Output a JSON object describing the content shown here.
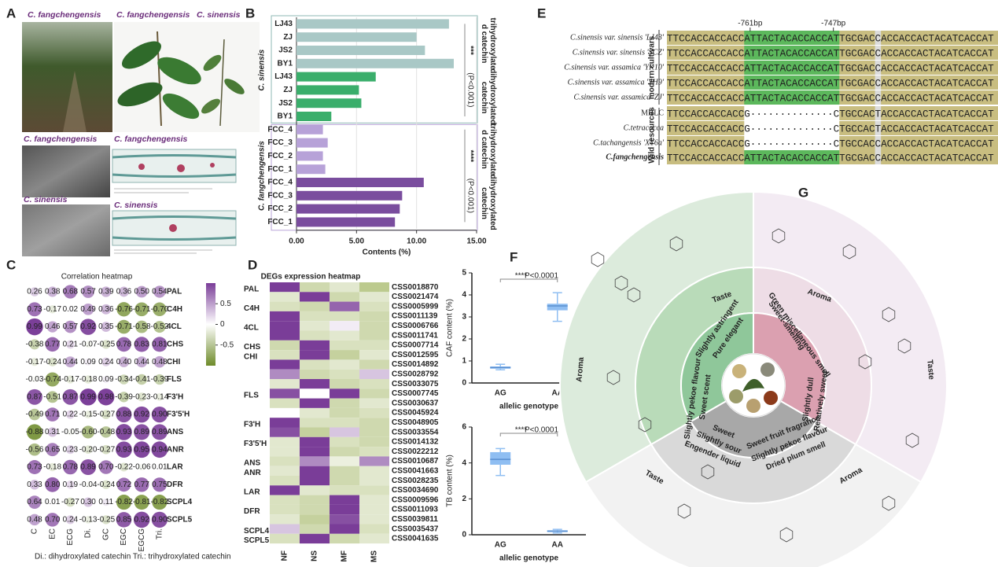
{
  "panel_labels": [
    "A",
    "B",
    "C",
    "D",
    "E",
    "F",
    "G"
  ],
  "panel_a": {
    "captions": [
      "C. fangchengensis",
      "C. fangchengensis",
      "C. sinensis",
      "C. fangchengensis",
      "C. fangchengensis",
      "C. sinensis",
      "C. sinensis"
    ]
  },
  "chart_data": [
    {
      "type": "bar",
      "orientation": "horizontal",
      "series": [
        {
          "name": "trihydroxylated catechin",
          "color": "#a9c8c6",
          "categories": [
            "LJ43",
            "ZJ",
            "JS2",
            "BY1"
          ],
          "values": [
            12.7,
            10.0,
            10.7,
            13.1
          ]
        },
        {
          "name": "dihydroxylated catechin",
          "color": "#3aae6b",
          "categories": [
            "LJ43",
            "ZJ",
            "JS2",
            "BY1"
          ],
          "values": [
            6.6,
            5.2,
            5.4,
            2.9
          ]
        },
        {
          "name": "trihydroxylated catechin",
          "color": "#b7a2d8",
          "categories": [
            "FCC_4",
            "FCC_3",
            "FCC_2",
            "FCC_1"
          ],
          "values": [
            2.2,
            2.6,
            2.2,
            2.4
          ]
        },
        {
          "name": "dihydroxylated catechin",
          "color": "#7a4d9e",
          "categories": [
            "FCC_4",
            "FCC_3",
            "FCC_2",
            "FCC_1"
          ],
          "values": [
            10.6,
            8.8,
            8.6,
            8.2
          ]
        }
      ],
      "species": [
        "C. sinensis",
        "C. fangchengensis"
      ],
      "significance": [
        {
          "stars": "***",
          "p": "(P<0.001)"
        },
        {
          "stars": "****",
          "p": "(P<0.001)"
        }
      ],
      "xlabel": "Contents (%)",
      "xlim": [
        0,
        15
      ],
      "xticks": [
        {
          "value": 0,
          "label": "0.00"
        },
        {
          "value": 5,
          "label": "5.00"
        },
        {
          "value": 10,
          "label": "10.00"
        },
        {
          "value": 15,
          "label": "15.00"
        }
      ],
      "grid": true
    },
    {
      "type": "heatmap",
      "title": "Correlation heatmap",
      "rows": [
        "PAL",
        "C4H",
        "4CL",
        "CHS",
        "CHI",
        "FLS",
        "F3'H",
        "F3'5'H",
        "ANS",
        "ANR",
        "LAR",
        "DFR",
        "SCPL4",
        "SCPL5"
      ],
      "columns": [
        "C",
        "EC",
        "ECG",
        "Di.",
        "GC",
        "EGC",
        "EGCG",
        "Tri."
      ],
      "values": [
        [
          0.26,
          0.38,
          0.68,
          0.57,
          0.39,
          0.36,
          0.5,
          0.54
        ],
        [
          0.73,
          -0.17,
          0.02,
          0.49,
          0.36,
          -0.76,
          -0.71,
          -0.7
        ],
        [
          0.99,
          0.46,
          0.57,
          0.92,
          0.35,
          -0.71,
          -0.58,
          -0.52
        ],
        [
          -0.38,
          0.77,
          0.21,
          -0.07,
          -0.25,
          0.78,
          0.83,
          0.81
        ],
        [
          -0.17,
          -0.24,
          0.44,
          0.09,
          0.24,
          0.4,
          0.44,
          0.48
        ],
        [
          -0.03,
          -0.74,
          -0.17,
          -0.18,
          0.09,
          -0.34,
          -0.41,
          -0.39
        ],
        [
          0.87,
          -0.51,
          0.87,
          0.99,
          0.98,
          -0.39,
          -0.23,
          -0.14
        ],
        [
          -0.49,
          0.71,
          0.22,
          -0.15,
          -0.27,
          0.88,
          0.92,
          0.9
        ],
        [
          -0.88,
          0.31,
          -0.05,
          -0.6,
          -0.48,
          0.93,
          0.89,
          0.89
        ],
        [
          -0.56,
          0.65,
          0.23,
          -0.2,
          -0.27,
          0.93,
          0.95,
          0.94
        ],
        [
          0.73,
          -0.18,
          0.78,
          0.89,
          0.7,
          -0.22,
          -0.06,
          0.01
        ],
        [
          0.33,
          0.8,
          0.19,
          -0.04,
          -0.24,
          0.72,
          0.77,
          0.75
        ],
        [
          0.64,
          0.01,
          -0.27,
          0.3,
          0.11,
          -0.82,
          -0.81,
          -0.82
        ],
        [
          0.48,
          0.7,
          0.24,
          -0.13,
          -0.25,
          0.85,
          0.92,
          0.9
        ]
      ],
      "value_labels": [
        [
          "0.26",
          "0.38",
          "0.68",
          "0.57",
          "0.39",
          "0.36",
          "0.50",
          "0.54"
        ],
        [
          "0.73",
          "-0.17",
          "0.02",
          "0.49",
          "0.36",
          "-0.76",
          "-0.71",
          "-0.70"
        ],
        [
          "0.99",
          "0.46",
          "0.57",
          "0.92",
          "0.35",
          "-0.71",
          "-0.58",
          "-0.52"
        ],
        [
          "-0.38",
          "0.77",
          "0.21",
          "-0.07",
          "-0.25",
          "0.78",
          "0.83",
          "0.81"
        ],
        [
          "-0.17",
          "-0.24",
          "0.44",
          "0.09",
          "0.24",
          "0.40",
          "0.44",
          "0.48"
        ],
        [
          "-0.03",
          "-0.74",
          "-0.17",
          "-0.18",
          "0.09",
          "-0.34",
          "-0.41",
          "-0.39"
        ],
        [
          "0.87",
          "-0.51",
          "0.87",
          "0.99",
          "0.98",
          "-0.39",
          "-0.23",
          "-0.14"
        ],
        [
          "-0.49",
          "0.71",
          "0.22",
          "-0.15",
          "-0.27",
          "0.88",
          "0.92",
          "0.90"
        ],
        [
          "-0.88",
          "0.31",
          "-0.05",
          "-0.60",
          "-0.48",
          "0.93",
          "0.89",
          "0.89"
        ],
        [
          "-0.56",
          "0.65",
          "0.23",
          "-0.20",
          "-0.27",
          "0.93",
          "0.95",
          "0.94"
        ],
        [
          "0.73",
          "-0.18",
          "0.78",
          "0.89",
          "0.70",
          "-0.22",
          "-0.06",
          "0.01"
        ],
        [
          "0.33",
          "0.80",
          "0.19",
          "-0.04",
          "-0.24",
          "0.72",
          "0.77",
          "0.75"
        ],
        [
          "0.64",
          "0.01",
          "-0.27",
          "0.30",
          "0.11",
          "-0.82",
          "-0.81",
          "-0.82"
        ],
        [
          "0.48",
          "0.70",
          "0.24",
          "-0.13",
          "-0.25",
          "0.85",
          "0.92",
          "0.90"
        ]
      ],
      "clim": [
        -1,
        1
      ],
      "cticks": [
        0.5,
        0,
        -0.5
      ],
      "colors": {
        "positive": "#7a3d98",
        "negative": "#6e8b2a"
      },
      "footnote": "Di.: dihydroxylated catechin   Tri.: trihydroxylated catechin"
    },
    {
      "type": "heatmap",
      "title": "DEGs expression heatmap",
      "row_groups": [
        "PAL",
        "C4H",
        "4CL",
        "CHS",
        "CHI",
        "FLS",
        "F3'H",
        "F3'5'H",
        "ANS",
        "ANR",
        "LAR",
        "DFR",
        "SCPL4",
        "SCPL5"
      ],
      "rows": [
        "CSS0018870",
        "CSS0021474",
        "CSS0005999",
        "CSS0011139",
        "CSS0006766",
        "CSS0011741",
        "CSS0007714",
        "CSS0012595",
        "CSS0014892",
        "CSS0028792",
        "CSS0033075",
        "CSS0007745",
        "CSS0030637",
        "CSS0045924",
        "CSS0048905",
        "CSS0033554",
        "CSS0014132",
        "CSS0022212",
        "CSS0010687",
        "CSS0041663",
        "CSS0028235",
        "CSS0034690",
        "CSS0009596",
        "CSS0011093",
        "CSS0039811",
        "CSS0035437",
        "CSS0041635"
      ],
      "columns": [
        "NF",
        "NS",
        "MF",
        "MS"
      ],
      "values": [
        [
          1,
          -0.5,
          -0.3,
          -0.7
        ],
        [
          -0.3,
          1,
          -0.5,
          -0.3
        ],
        [
          -0.4,
          -0.5,
          0.8,
          -0.4
        ],
        [
          1,
          -0.4,
          -0.4,
          -0.5
        ],
        [
          1,
          -0.3,
          0.1,
          -0.5
        ],
        [
          1,
          -0.4,
          -0.3,
          -0.5
        ],
        [
          -0.5,
          1,
          -0.4,
          -0.4
        ],
        [
          -0.4,
          1,
          -0.6,
          -0.3
        ],
        [
          1,
          -0.4,
          -0.3,
          -0.5
        ],
        [
          0.6,
          -0.5,
          -0.4,
          0.3
        ],
        [
          -0.3,
          1,
          -0.5,
          -0.4
        ],
        [
          0.9,
          0,
          1,
          -0.5
        ],
        [
          -0.4,
          1,
          -0.5,
          -0.3
        ],
        [
          0,
          -0.3,
          -0.5,
          -0.4
        ],
        [
          1,
          -0.4,
          -0.4,
          -0.5
        ],
        [
          0.9,
          -0.6,
          0.3,
          -0.5
        ],
        [
          -0.3,
          1,
          -0.4,
          -0.5
        ],
        [
          -0.3,
          1,
          -0.5,
          -0.4
        ],
        [
          -0.4,
          0.6,
          -0.2,
          0.6
        ],
        [
          -0.3,
          1,
          -0.5,
          -0.3
        ],
        [
          -0.4,
          1,
          -0.5,
          -0.3
        ],
        [
          1,
          -0.3,
          -0.4,
          -0.4
        ],
        [
          -0.4,
          -0.5,
          1,
          -0.3
        ],
        [
          -0.4,
          -0.5,
          1,
          -0.3
        ],
        [
          -0.3,
          -0.6,
          0.9,
          -0.3
        ],
        [
          0.3,
          -0.5,
          1,
          -0.4
        ],
        [
          -0.4,
          1,
          -0.5,
          -0.3
        ]
      ],
      "clim": [
        -1,
        1
      ],
      "colors": {
        "positive": "#7a3d98",
        "negative": "#9fb35e"
      }
    },
    {
      "type": "box",
      "ylabel": "CAF content (%)",
      "xlabel": "allelic genotype",
      "categories": [
        "AG",
        "AA"
      ],
      "color": "#8fbef2",
      "min": [
        0.6,
        2.8
      ],
      "q1": [
        0.65,
        3.3
      ],
      "median": [
        0.7,
        3.5
      ],
      "q3": [
        0.75,
        3.6
      ],
      "max": [
        0.85,
        4.1
      ],
      "ylim": [
        0,
        5
      ],
      "yticks": [
        0,
        1,
        2,
        3,
        4,
        5
      ],
      "annotation": {
        "stars": "****",
        "p": "P<0.0001"
      }
    },
    {
      "type": "box",
      "ylabel": "TB content (%)",
      "xlabel": "allelic genotype",
      "categories": [
        "AG",
        "AA"
      ],
      "color": "#8fbef2",
      "min": [
        3.3,
        0.1
      ],
      "q1": [
        3.9,
        0.15
      ],
      "median": [
        4.2,
        0.2
      ],
      "q3": [
        4.6,
        0.25
      ],
      "max": [
        4.8,
        0.3
      ],
      "ylim": [
        0,
        6
      ],
      "yticks": [
        0,
        2,
        4,
        6
      ],
      "annotation": {
        "stars": "****",
        "p": "P<0.0001"
      }
    }
  ],
  "alignment": {
    "markers": [
      "-761bp",
      "-747bp"
    ],
    "groups": [
      "modern cultivars",
      "Wild resources"
    ],
    "rows": [
      {
        "label": "C.sinensis var. sinensis 'LJ43'",
        "sequence": "TTCCACCACCACCATTACTACACCACCATTGCGACCACCACCACTACATCACCAT"
      },
      {
        "label": "C.sinensis var. sinensis 'SCZ'",
        "sequence": "TTCCACCACCACCATTACTACACCACCATTGCGACCACCACCACTACATCACCAT"
      },
      {
        "label": "C.sinensis var. assamica 'YK10'",
        "sequence": "TTCCACCACCACCATTACTACACCACCATTGCGACCACCACCACTACATCACCAT"
      },
      {
        "label": "C.sinensis var. assamica 'YH9'",
        "sequence": "TTCCACCACCACCATTACTACACCACCATTGCGACCACCACCACTACATCACCAT"
      },
      {
        "label": "C.sinensis var. assamica 'ZJ'",
        "sequence": "TTCCACCACCACCATTACTACACCACCATTGCGACCACCACCACTACATCACCAT"
      },
      {
        "label": "MHLC",
        "sequence": "TTCCACCACCACCG··············CTGCCACTACCACCACTACATCACCAT"
      },
      {
        "label": "C.tetracocca",
        "sequence": "TTCCACCACCACCG··············CTGCCACTACCACCACTACATCACCAT"
      },
      {
        "label": "C.tachangensis 'XY6a'",
        "sequence": "TTCCACCACCACCG··············CTGCCACCACCACCACTACATCACCAT"
      },
      {
        "label": "C.fangchengensis",
        "sequence": "TTCCACCACCACCATTACTACACCACCATTGCGACCACCACCACTACATCACCAT"
      }
    ]
  },
  "diagram": {
    "headers": [
      "Taste",
      "Aroma",
      "Aroma",
      "Taste",
      "Taste",
      "Aroma"
    ],
    "descriptors": [
      "Slightly astringent",
      "Pure elegant",
      "Sweet-smelling",
      "Green miscellaneous smell",
      "Slightly dull",
      "Relatively sweet",
      "Sweet scent",
      "Slightly pekoe flavour",
      "Sweet",
      "Slightly sour",
      "Engender liquid",
      "Sweet fruit fragrance",
      "Slightly pekoe flavour",
      "Dried plum smell"
    ]
  }
}
